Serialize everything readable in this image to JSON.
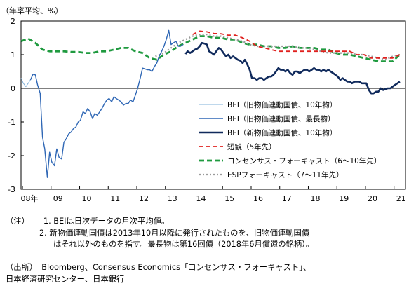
{
  "unit_label": "（年率平均、%）",
  "chart_data": {
    "type": "line",
    "ylim": [
      -3,
      2
    ],
    "yticks": [
      2,
      1,
      0,
      -1,
      -2,
      -3
    ],
    "xlim": [
      2008.0,
      2021.45
    ],
    "xticks": [
      {
        "x": 2008.05,
        "label": "08年"
      },
      {
        "x": 2009.05,
        "label": "09"
      },
      {
        "x": 2010.05,
        "label": "10"
      },
      {
        "x": 2011.05,
        "label": "11"
      },
      {
        "x": 2012.05,
        "label": "12"
      },
      {
        "x": 2013.05,
        "label": "13"
      },
      {
        "x": 2014.05,
        "label": "14"
      },
      {
        "x": 2015.05,
        "label": "15"
      },
      {
        "x": 2016.05,
        "label": "16"
      },
      {
        "x": 2017.05,
        "label": "17"
      },
      {
        "x": 2018.05,
        "label": "18"
      },
      {
        "x": 2019.05,
        "label": "19"
      },
      {
        "x": 2020.05,
        "label": "20"
      },
      {
        "x": 2021.05,
        "label": "21"
      }
    ],
    "series": [
      {
        "name": "BEI（旧物価連動国債、10年物）",
        "color": "#7fb0d8",
        "width": 1,
        "dash": "",
        "points": [
          [
            2008.0,
            0.3
          ],
          [
            2008.08,
            0.15
          ],
          [
            2008.17,
            0.05
          ],
          [
            2008.25,
            0.15
          ],
          [
            2008.33,
            0.25
          ]
        ]
      },
      {
        "name": "BEI（旧物価連動国債、最長物）",
        "color": "#2f67b5",
        "width": 1.4,
        "dash": "",
        "points": [
          [
            2008.33,
            0.25
          ],
          [
            2008.42,
            0.42
          ],
          [
            2008.5,
            0.4
          ],
          [
            2008.58,
            0.1
          ],
          [
            2008.67,
            -0.15
          ],
          [
            2008.75,
            -1.45
          ],
          [
            2008.83,
            -1.8
          ],
          [
            2008.92,
            -2.65
          ],
          [
            2009.0,
            -1.9
          ],
          [
            2009.08,
            -2.2
          ],
          [
            2009.17,
            -2.3
          ],
          [
            2009.25,
            -1.8
          ],
          [
            2009.33,
            -2.05
          ],
          [
            2009.42,
            -2.1
          ],
          [
            2009.5,
            -1.6
          ],
          [
            2009.58,
            -1.5
          ],
          [
            2009.67,
            -1.35
          ],
          [
            2009.75,
            -1.3
          ],
          [
            2009.83,
            -1.2
          ],
          [
            2009.92,
            -1.15
          ],
          [
            2010.0,
            -1.0
          ],
          [
            2010.08,
            -0.95
          ],
          [
            2010.17,
            -0.7
          ],
          [
            2010.25,
            -0.75
          ],
          [
            2010.33,
            -0.6
          ],
          [
            2010.42,
            -0.7
          ],
          [
            2010.5,
            -0.9
          ],
          [
            2010.58,
            -0.75
          ],
          [
            2010.67,
            -0.8
          ],
          [
            2010.75,
            -0.7
          ],
          [
            2010.83,
            -0.6
          ],
          [
            2010.92,
            -0.45
          ],
          [
            2011.0,
            -0.35
          ],
          [
            2011.08,
            -0.3
          ],
          [
            2011.17,
            -0.4
          ],
          [
            2011.25,
            -0.25
          ],
          [
            2011.33,
            -0.3
          ],
          [
            2011.42,
            -0.35
          ],
          [
            2011.5,
            -0.4
          ],
          [
            2011.58,
            -0.5
          ],
          [
            2011.67,
            -0.45
          ],
          [
            2011.75,
            -0.45
          ],
          [
            2011.83,
            -0.35
          ],
          [
            2011.92,
            -0.4
          ],
          [
            2012.0,
            -0.2
          ],
          [
            2012.08,
            0.0
          ],
          [
            2012.17,
            0.3
          ],
          [
            2012.25,
            0.6
          ],
          [
            2012.33,
            0.58
          ],
          [
            2012.42,
            0.55
          ],
          [
            2012.5,
            0.55
          ],
          [
            2012.58,
            0.5
          ],
          [
            2012.67,
            0.65
          ],
          [
            2012.75,
            0.75
          ],
          [
            2012.83,
            0.95
          ],
          [
            2012.92,
            1.1
          ],
          [
            2013.0,
            1.25
          ],
          [
            2013.08,
            1.45
          ],
          [
            2013.17,
            1.72
          ],
          [
            2013.25,
            1.3
          ],
          [
            2013.33,
            1.35
          ],
          [
            2013.42,
            1.4
          ],
          [
            2013.5,
            1.25
          ],
          [
            2013.58,
            1.25
          ],
          [
            2013.67,
            1.3
          ]
        ]
      },
      {
        "name": "BEI（新物価連動国債、10年物）",
        "color": "#102a5c",
        "width": 2.6,
        "dash": "",
        "points": [
          [
            2013.75,
            1.02
          ],
          [
            2013.83,
            1.1
          ],
          [
            2013.92,
            1.05
          ],
          [
            2014.0,
            1.1
          ],
          [
            2014.08,
            1.15
          ],
          [
            2014.17,
            1.18
          ],
          [
            2014.25,
            1.25
          ],
          [
            2014.33,
            1.35
          ],
          [
            2014.42,
            1.33
          ],
          [
            2014.5,
            1.3
          ],
          [
            2014.58,
            1.1
          ],
          [
            2014.67,
            1.05
          ],
          [
            2014.75,
            1.0
          ],
          [
            2014.83,
            1.1
          ],
          [
            2014.92,
            1.2
          ],
          [
            2015.0,
            1.15
          ],
          [
            2015.08,
            1.05
          ],
          [
            2015.17,
            0.95
          ],
          [
            2015.25,
            1.0
          ],
          [
            2015.33,
            0.9
          ],
          [
            2015.42,
            0.95
          ],
          [
            2015.5,
            0.9
          ],
          [
            2015.58,
            0.85
          ],
          [
            2015.67,
            0.82
          ],
          [
            2015.75,
            0.75
          ],
          [
            2015.83,
            0.85
          ],
          [
            2015.92,
            0.7
          ],
          [
            2016.0,
            0.55
          ],
          [
            2016.08,
            0.3
          ],
          [
            2016.17,
            0.3
          ],
          [
            2016.25,
            0.25
          ],
          [
            2016.33,
            0.3
          ],
          [
            2016.42,
            0.3
          ],
          [
            2016.5,
            0.25
          ],
          [
            2016.58,
            0.3
          ],
          [
            2016.67,
            0.35
          ],
          [
            2016.75,
            0.35
          ],
          [
            2016.83,
            0.4
          ],
          [
            2016.92,
            0.5
          ],
          [
            2017.0,
            0.6
          ],
          [
            2017.08,
            0.55
          ],
          [
            2017.17,
            0.55
          ],
          [
            2017.25,
            0.5
          ],
          [
            2017.33,
            0.55
          ],
          [
            2017.42,
            0.45
          ],
          [
            2017.5,
            0.4
          ],
          [
            2017.58,
            0.5
          ],
          [
            2017.67,
            0.5
          ],
          [
            2017.75,
            0.45
          ],
          [
            2017.83,
            0.5
          ],
          [
            2017.92,
            0.55
          ],
          [
            2018.0,
            0.55
          ],
          [
            2018.08,
            0.5
          ],
          [
            2018.17,
            0.55
          ],
          [
            2018.25,
            0.6
          ],
          [
            2018.33,
            0.55
          ],
          [
            2018.42,
            0.55
          ],
          [
            2018.5,
            0.5
          ],
          [
            2018.58,
            0.55
          ],
          [
            2018.67,
            0.5
          ],
          [
            2018.75,
            0.55
          ],
          [
            2018.83,
            0.5
          ],
          [
            2018.92,
            0.45
          ],
          [
            2019.0,
            0.4
          ],
          [
            2019.08,
            0.35
          ],
          [
            2019.17,
            0.25
          ],
          [
            2019.25,
            0.3
          ],
          [
            2019.33,
            0.25
          ],
          [
            2019.42,
            0.2
          ],
          [
            2019.5,
            0.2
          ],
          [
            2019.58,
            0.15
          ],
          [
            2019.67,
            0.2
          ],
          [
            2019.75,
            0.2
          ],
          [
            2019.83,
            0.2
          ],
          [
            2019.92,
            0.15
          ],
          [
            2020.0,
            0.15
          ],
          [
            2020.08,
            0.15
          ],
          [
            2020.17,
            -0.05
          ],
          [
            2020.25,
            -0.15
          ],
          [
            2020.33,
            -0.15
          ],
          [
            2020.42,
            -0.1
          ],
          [
            2020.5,
            -0.1
          ],
          [
            2020.58,
            0.0
          ],
          [
            2020.67,
            -0.05
          ],
          [
            2020.75,
            -0.02
          ],
          [
            2020.83,
            0.0
          ],
          [
            2020.92,
            0.0
          ],
          [
            2021.0,
            0.05
          ],
          [
            2021.08,
            0.1
          ],
          [
            2021.17,
            0.15
          ],
          [
            2021.25,
            0.2
          ]
        ]
      },
      {
        "name": "短観（5年先）",
        "color": "#e0201e",
        "width": 1.8,
        "dash": "6 4",
        "points": [
          [
            2014.0,
            1.6
          ],
          [
            2014.25,
            1.7
          ],
          [
            2014.5,
            1.68
          ],
          [
            2014.75,
            1.63
          ],
          [
            2015.0,
            1.62
          ],
          [
            2015.25,
            1.58
          ],
          [
            2015.5,
            1.58
          ],
          [
            2015.75,
            1.5
          ],
          [
            2016.0,
            1.4
          ],
          [
            2016.25,
            1.25
          ],
          [
            2016.5,
            1.2
          ],
          [
            2016.75,
            1.15
          ],
          [
            2017.0,
            1.1
          ],
          [
            2017.25,
            1.1
          ],
          [
            2017.5,
            1.1
          ],
          [
            2017.75,
            1.1
          ],
          [
            2018.0,
            1.1
          ],
          [
            2018.25,
            1.1
          ],
          [
            2018.5,
            1.1
          ],
          [
            2018.75,
            1.1
          ],
          [
            2019.0,
            1.1
          ],
          [
            2019.25,
            1.1
          ],
          [
            2019.5,
            1.1
          ],
          [
            2019.75,
            1.0
          ],
          [
            2020.0,
            1.0
          ],
          [
            2020.25,
            0.9
          ],
          [
            2020.5,
            0.9
          ],
          [
            2020.75,
            0.9
          ],
          [
            2021.0,
            0.9
          ],
          [
            2021.25,
            1.0
          ]
        ]
      },
      {
        "name": "コンセンサス・フォーキャスト（6～10年先）",
        "color": "#1f9a3f",
        "width": 2.8,
        "dash": "7 4",
        "points": [
          [
            2008.0,
            1.4
          ],
          [
            2008.25,
            1.48
          ],
          [
            2008.5,
            1.35
          ],
          [
            2008.75,
            1.15
          ],
          [
            2009.0,
            1.1
          ],
          [
            2009.25,
            1.1
          ],
          [
            2009.5,
            1.1
          ],
          [
            2009.75,
            1.08
          ],
          [
            2010.0,
            1.08
          ],
          [
            2010.25,
            1.05
          ],
          [
            2010.5,
            1.05
          ],
          [
            2010.75,
            1.1
          ],
          [
            2011.0,
            1.1
          ],
          [
            2011.25,
            1.15
          ],
          [
            2011.5,
            1.2
          ],
          [
            2011.75,
            1.2
          ],
          [
            2012.0,
            1.1
          ],
          [
            2012.25,
            1.05
          ],
          [
            2012.5,
            0.9
          ],
          [
            2012.75,
            0.85
          ],
          [
            2013.0,
            1.0
          ],
          [
            2013.25,
            1.1
          ],
          [
            2013.5,
            1.25
          ],
          [
            2013.75,
            1.35
          ],
          [
            2014.0,
            1.45
          ],
          [
            2014.25,
            1.55
          ],
          [
            2014.5,
            1.55
          ],
          [
            2014.75,
            1.5
          ],
          [
            2015.0,
            1.5
          ],
          [
            2015.25,
            1.45
          ],
          [
            2015.5,
            1.45
          ],
          [
            2015.75,
            1.35
          ],
          [
            2016.0,
            1.3
          ],
          [
            2016.25,
            1.3
          ],
          [
            2016.5,
            1.25
          ],
          [
            2016.75,
            1.25
          ],
          [
            2017.0,
            1.2
          ],
          [
            2017.25,
            1.2
          ],
          [
            2017.5,
            1.25
          ],
          [
            2017.75,
            1.2
          ],
          [
            2018.0,
            1.2
          ],
          [
            2018.25,
            1.2
          ],
          [
            2018.5,
            1.15
          ],
          [
            2018.75,
            1.15
          ],
          [
            2019.0,
            1.05
          ],
          [
            2019.25,
            1.0
          ],
          [
            2019.5,
            1.0
          ],
          [
            2019.75,
            0.95
          ],
          [
            2020.0,
            0.9
          ],
          [
            2020.25,
            0.85
          ],
          [
            2020.5,
            0.8
          ],
          [
            2020.75,
            0.8
          ],
          [
            2021.0,
            0.8
          ],
          [
            2021.25,
            1.0
          ]
        ]
      },
      {
        "name": "ESPフォーキャスト（7～11年先）",
        "color": "#9a9a9a",
        "width": 2.2,
        "dash": "2 3",
        "points": [
          [
            2012.7,
            0.95
          ],
          [
            2013.0,
            1.05
          ],
          [
            2013.25,
            1.2
          ],
          [
            2013.5,
            1.35
          ],
          [
            2013.75,
            1.45
          ],
          [
            2014.0,
            1.55
          ],
          [
            2014.25,
            1.6
          ],
          [
            2014.5,
            1.6
          ],
          [
            2014.75,
            1.55
          ],
          [
            2015.0,
            1.55
          ],
          [
            2015.25,
            1.5
          ],
          [
            2015.5,
            1.45
          ],
          [
            2015.75,
            1.4
          ],
          [
            2016.0,
            1.3
          ],
          [
            2016.25,
            1.25
          ],
          [
            2016.5,
            1.25
          ],
          [
            2016.75,
            1.25
          ],
          [
            2017.0,
            1.25
          ],
          [
            2017.25,
            1.25
          ],
          [
            2017.5,
            1.25
          ],
          [
            2017.75,
            1.2
          ],
          [
            2018.0,
            1.2
          ],
          [
            2018.25,
            1.15
          ],
          [
            2018.5,
            1.1
          ],
          [
            2018.75,
            1.05
          ],
          [
            2019.0,
            1.05
          ],
          [
            2019.25,
            1.05
          ],
          [
            2019.5,
            1.05
          ],
          [
            2019.75,
            1.0
          ],
          [
            2020.0,
            1.0
          ],
          [
            2020.25,
            0.95
          ],
          [
            2020.5,
            0.9
          ],
          [
            2020.75,
            0.85
          ],
          [
            2021.0,
            0.95
          ],
          [
            2021.25,
            1.0
          ]
        ]
      }
    ],
    "legend_position": "lower-right"
  },
  "notes": {
    "label": "（注）",
    "items": [
      "1. BEIは日次データの月次平均値。",
      "2. 新物価連動国債は2013年10月以降に発行されたものを、旧物価連動国債",
      "はそれ以外のものを指す。最長物は第16回債（2018年6月償還の銘柄）。"
    ]
  },
  "source": {
    "label": "（出所）",
    "lines": [
      "Bloomberg、Consensus Economics「コンセンサス・フォーキャスト」、",
      "日本経済研究センター、日本銀行"
    ]
  }
}
